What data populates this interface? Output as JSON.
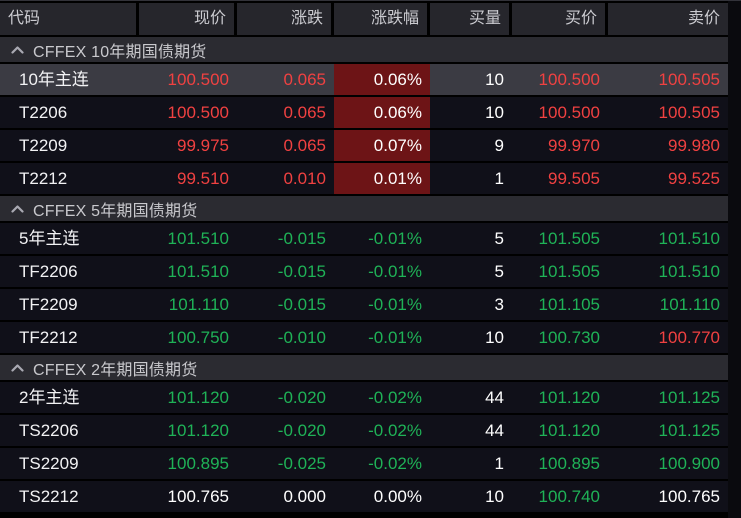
{
  "colors": {
    "up": "#f04141",
    "down": "#1fb257",
    "flat": "#ffffff",
    "up_pct_bg": "#6d1416",
    "header_bg": "#26262c",
    "group_bg": "#2b2b31",
    "row_bg": "#101019",
    "selected_row_bg": "#3b3b43",
    "window_bg": "#000000"
  },
  "header": {
    "columns": [
      {
        "key": "code",
        "label": "代码"
      },
      {
        "key": "price",
        "label": "现价"
      },
      {
        "key": "change",
        "label": "涨跌"
      },
      {
        "key": "change_pct",
        "label": "涨跌幅"
      },
      {
        "key": "bid_vol",
        "label": "买量"
      },
      {
        "key": "bid",
        "label": "买价"
      },
      {
        "key": "ask",
        "label": "卖价"
      }
    ]
  },
  "groups": [
    {
      "label": "CFFEX 10年期国债期货",
      "collapse_icon": "chevron-up",
      "rows": [
        {
          "code": "10年主连",
          "price": "100.500",
          "change": "0.065",
          "change_pct": "0.06%",
          "bid_vol": "10",
          "bid": "100.500",
          "ask": "100.505",
          "selected": true,
          "trends": {
            "price": "up",
            "change": "up",
            "pct": "up",
            "bid": "up",
            "ask": "up"
          }
        },
        {
          "code": "T2206",
          "price": "100.500",
          "change": "0.065",
          "change_pct": "0.06%",
          "bid_vol": "10",
          "bid": "100.500",
          "ask": "100.505",
          "selected": false,
          "trends": {
            "price": "up",
            "change": "up",
            "pct": "up",
            "bid": "up",
            "ask": "up"
          }
        },
        {
          "code": "T2209",
          "price": "99.975",
          "change": "0.065",
          "change_pct": "0.07%",
          "bid_vol": "9",
          "bid": "99.970",
          "ask": "99.980",
          "selected": false,
          "trends": {
            "price": "up",
            "change": "up",
            "pct": "up",
            "bid": "up",
            "ask": "up"
          }
        },
        {
          "code": "T2212",
          "price": "99.510",
          "change": "0.010",
          "change_pct": "0.01%",
          "bid_vol": "1",
          "bid": "99.505",
          "ask": "99.525",
          "selected": false,
          "trends": {
            "price": "up",
            "change": "up",
            "pct": "up",
            "bid": "up",
            "ask": "up"
          }
        }
      ]
    },
    {
      "label": "CFFEX 5年期国债期货",
      "collapse_icon": "chevron-up",
      "rows": [
        {
          "code": "5年主连",
          "price": "101.510",
          "change": "-0.015",
          "change_pct": "-0.01%",
          "bid_vol": "5",
          "bid": "101.505",
          "ask": "101.510",
          "selected": false,
          "trends": {
            "price": "down",
            "change": "down",
            "pct": "down",
            "bid": "down",
            "ask": "down"
          }
        },
        {
          "code": "TF2206",
          "price": "101.510",
          "change": "-0.015",
          "change_pct": "-0.01%",
          "bid_vol": "5",
          "bid": "101.505",
          "ask": "101.510",
          "selected": false,
          "trends": {
            "price": "down",
            "change": "down",
            "pct": "down",
            "bid": "down",
            "ask": "down"
          }
        },
        {
          "code": "TF2209",
          "price": "101.110",
          "change": "-0.015",
          "change_pct": "-0.01%",
          "bid_vol": "3",
          "bid": "101.105",
          "ask": "101.110",
          "selected": false,
          "trends": {
            "price": "down",
            "change": "down",
            "pct": "down",
            "bid": "down",
            "ask": "down"
          }
        },
        {
          "code": "TF2212",
          "price": "100.750",
          "change": "-0.010",
          "change_pct": "-0.01%",
          "bid_vol": "10",
          "bid": "100.730",
          "ask": "100.770",
          "selected": false,
          "trends": {
            "price": "down",
            "change": "down",
            "pct": "down",
            "bid": "down",
            "ask": "up"
          }
        }
      ]
    },
    {
      "label": "CFFEX 2年期国债期货",
      "collapse_icon": "chevron-up",
      "rows": [
        {
          "code": "2年主连",
          "price": "101.120",
          "change": "-0.020",
          "change_pct": "-0.02%",
          "bid_vol": "44",
          "bid": "101.120",
          "ask": "101.125",
          "selected": false,
          "trends": {
            "price": "down",
            "change": "down",
            "pct": "down",
            "bid": "down",
            "ask": "down"
          }
        },
        {
          "code": "TS2206",
          "price": "101.120",
          "change": "-0.020",
          "change_pct": "-0.02%",
          "bid_vol": "44",
          "bid": "101.120",
          "ask": "101.125",
          "selected": false,
          "trends": {
            "price": "down",
            "change": "down",
            "pct": "down",
            "bid": "down",
            "ask": "down"
          }
        },
        {
          "code": "TS2209",
          "price": "100.895",
          "change": "-0.025",
          "change_pct": "-0.02%",
          "bid_vol": "1",
          "bid": "100.895",
          "ask": "100.900",
          "selected": false,
          "trends": {
            "price": "down",
            "change": "down",
            "pct": "down",
            "bid": "down",
            "ask": "down"
          }
        },
        {
          "code": "TS2212",
          "price": "100.765",
          "change": "0.000",
          "change_pct": "0.00%",
          "bid_vol": "10",
          "bid": "100.740",
          "ask": "100.765",
          "selected": false,
          "trends": {
            "price": "flat",
            "change": "flat",
            "pct": "flat",
            "bid": "down",
            "ask": "flat"
          }
        }
      ]
    }
  ]
}
